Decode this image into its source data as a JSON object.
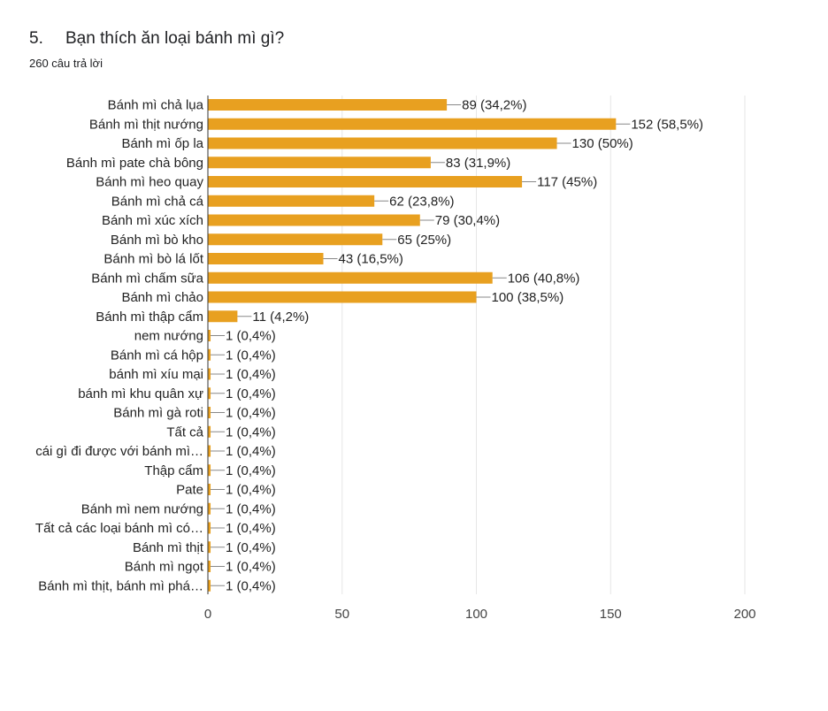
{
  "question": {
    "number": "5.",
    "title": "Bạn thích ăn loại bánh mì gì?",
    "response_count": "260 câu trả lời"
  },
  "colors": {
    "bar": "#e8a020",
    "grid": "#e6e6e6",
    "axis": "#333333"
  },
  "chart_data": {
    "type": "bar",
    "orientation": "horizontal",
    "categories": [
      "Bánh mì chả lụa",
      "Bánh mì thịt nướng",
      "Bánh mì ốp la",
      "Bánh mì pate chà bông",
      "Bánh mì heo quay",
      "Bánh mì chả cá",
      "Bánh mì xúc xích",
      "Bánh mì bò kho",
      "Bánh mì bò lá lốt",
      "Bánh mì chấm sữa",
      "Bánh mì chảo",
      "Bánh mì thập cẩm",
      "nem nướng",
      "Bánh mì cá hộp",
      "bánh mì xíu mại",
      "bánh mì khu quân xự",
      "Bánh mì gà roti",
      "Tất cả",
      "cái gì đi được với bánh mì…",
      "Thập cẩm",
      "Pate",
      "Bánh mì nem nướng",
      "Tất cả các loại bánh mì có…",
      "Bánh mì thịt",
      "Bánh mì ngọt",
      "Bánh mì thịt, bánh mì phá…"
    ],
    "values": [
      89,
      152,
      130,
      83,
      117,
      62,
      79,
      65,
      43,
      106,
      100,
      11,
      1,
      1,
      1,
      1,
      1,
      1,
      1,
      1,
      1,
      1,
      1,
      1,
      1,
      1
    ],
    "value_labels": [
      "89 (34,2%)",
      "152 (58,5%)",
      "130 (50%)",
      "83 (31,9%)",
      "117 (45%)",
      "62 (23,8%)",
      "79 (30,4%)",
      "65 (25%)",
      "43 (16,5%)",
      "106 (40,8%)",
      "100 (38,5%)",
      "11 (4,2%)",
      "1 (0,4%)",
      "1 (0,4%)",
      "1 (0,4%)",
      "1 (0,4%)",
      "1 (0,4%)",
      "1 (0,4%)",
      "1 (0,4%)",
      "1 (0,4%)",
      "1 (0,4%)",
      "1 (0,4%)",
      "1 (0,4%)",
      "1 (0,4%)",
      "1 (0,4%)",
      "1 (0,4%)"
    ],
    "xlim": [
      0,
      200
    ],
    "xticks": [
      "0",
      "50",
      "100",
      "150",
      "200"
    ],
    "grid": true,
    "legend": "none"
  }
}
